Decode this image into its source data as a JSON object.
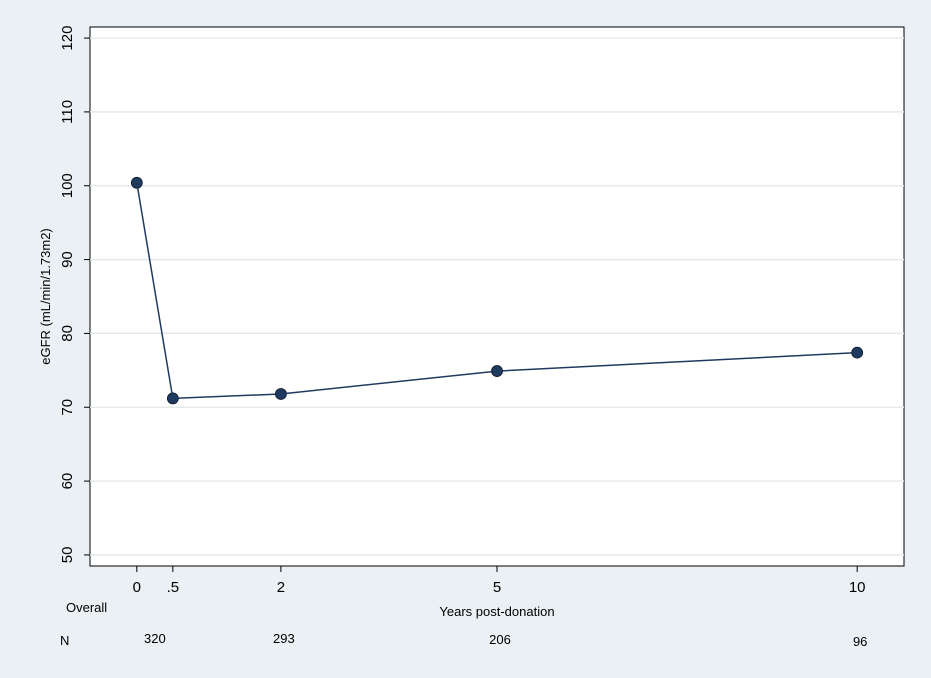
{
  "chart_data": {
    "type": "line",
    "xlabel": "Years post-donation",
    "ylabel": "eGFR (mL/min/1.73m2)",
    "x_ticks": [
      {
        "value": 0,
        "label": "0"
      },
      {
        "value": 0.5,
        "label": ".5"
      },
      {
        "value": 2,
        "label": "2"
      },
      {
        "value": 5,
        "label": "5"
      },
      {
        "value": 10,
        "label": "10"
      }
    ],
    "y_ticks": [
      50,
      60,
      70,
      80,
      90,
      100,
      110,
      120
    ],
    "xlim": [
      -0.65,
      10.65
    ],
    "ylim": [
      48.5,
      121.5
    ],
    "grid": "horizontal",
    "series": [
      {
        "color": "#1f3a5f",
        "x": [
          0,
          0.5,
          2,
          5,
          10
        ],
        "y": [
          100.4,
          71.2,
          71.8,
          74.9,
          77.4
        ]
      }
    ]
  },
  "table": {
    "overall_label": "Overall",
    "n_label": "N",
    "counts": [
      {
        "x": 0.5,
        "value": "320"
      },
      {
        "x": 2,
        "value": "293"
      },
      {
        "x": 5,
        "value": "206"
      },
      {
        "x": 10,
        "value": "96"
      }
    ]
  },
  "colors": {
    "outer_background": "#eaf0f3",
    "plot_background": "#ffffff",
    "grid": "#e4e9ec",
    "line": "#1f3a5f"
  }
}
